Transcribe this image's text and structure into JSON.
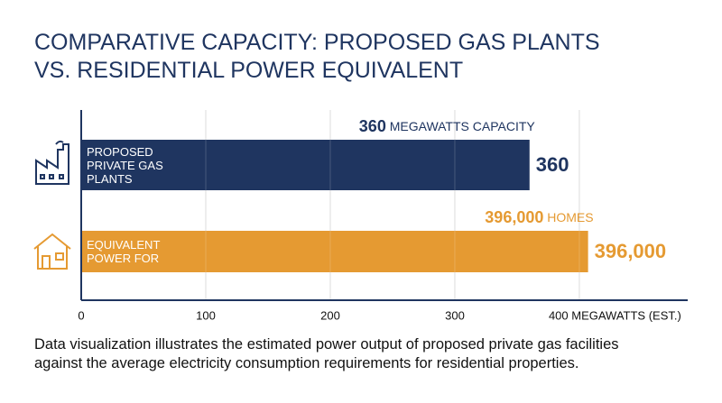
{
  "chart_data": {
    "type": "hbar",
    "title_lines": [
      "COMPARATIVE CAPACITY: PROPOSED GAS PLANTS",
      "VS. RESIDENTIAL POWER EQUIVALENT"
    ],
    "categories": [
      "PROPOSED PRIVATE GAS PLANTS",
      "EQUIVALENT POWER FOR"
    ],
    "values": [
      360,
      407
    ],
    "colors": [
      "#1f3560",
      "#e59a32"
    ],
    "end_labels": [
      "360",
      "396,000"
    ],
    "annotations": [
      {
        "strong": "360",
        "text": "MEGAWATTS CAPACITY"
      },
      {
        "strong": "396,000",
        "text": "HOMES"
      }
    ],
    "xlim": [
      0,
      487
    ],
    "xticks": [
      0,
      100,
      200,
      300,
      {
        "value": 400,
        "label": "400 MEGAWATTS (EST.)"
      }
    ],
    "grid": true,
    "caption": "Data visualization illustrates the estimated power output of proposed private gas facilities against the average electricity consumption requirements for residential properties."
  }
}
